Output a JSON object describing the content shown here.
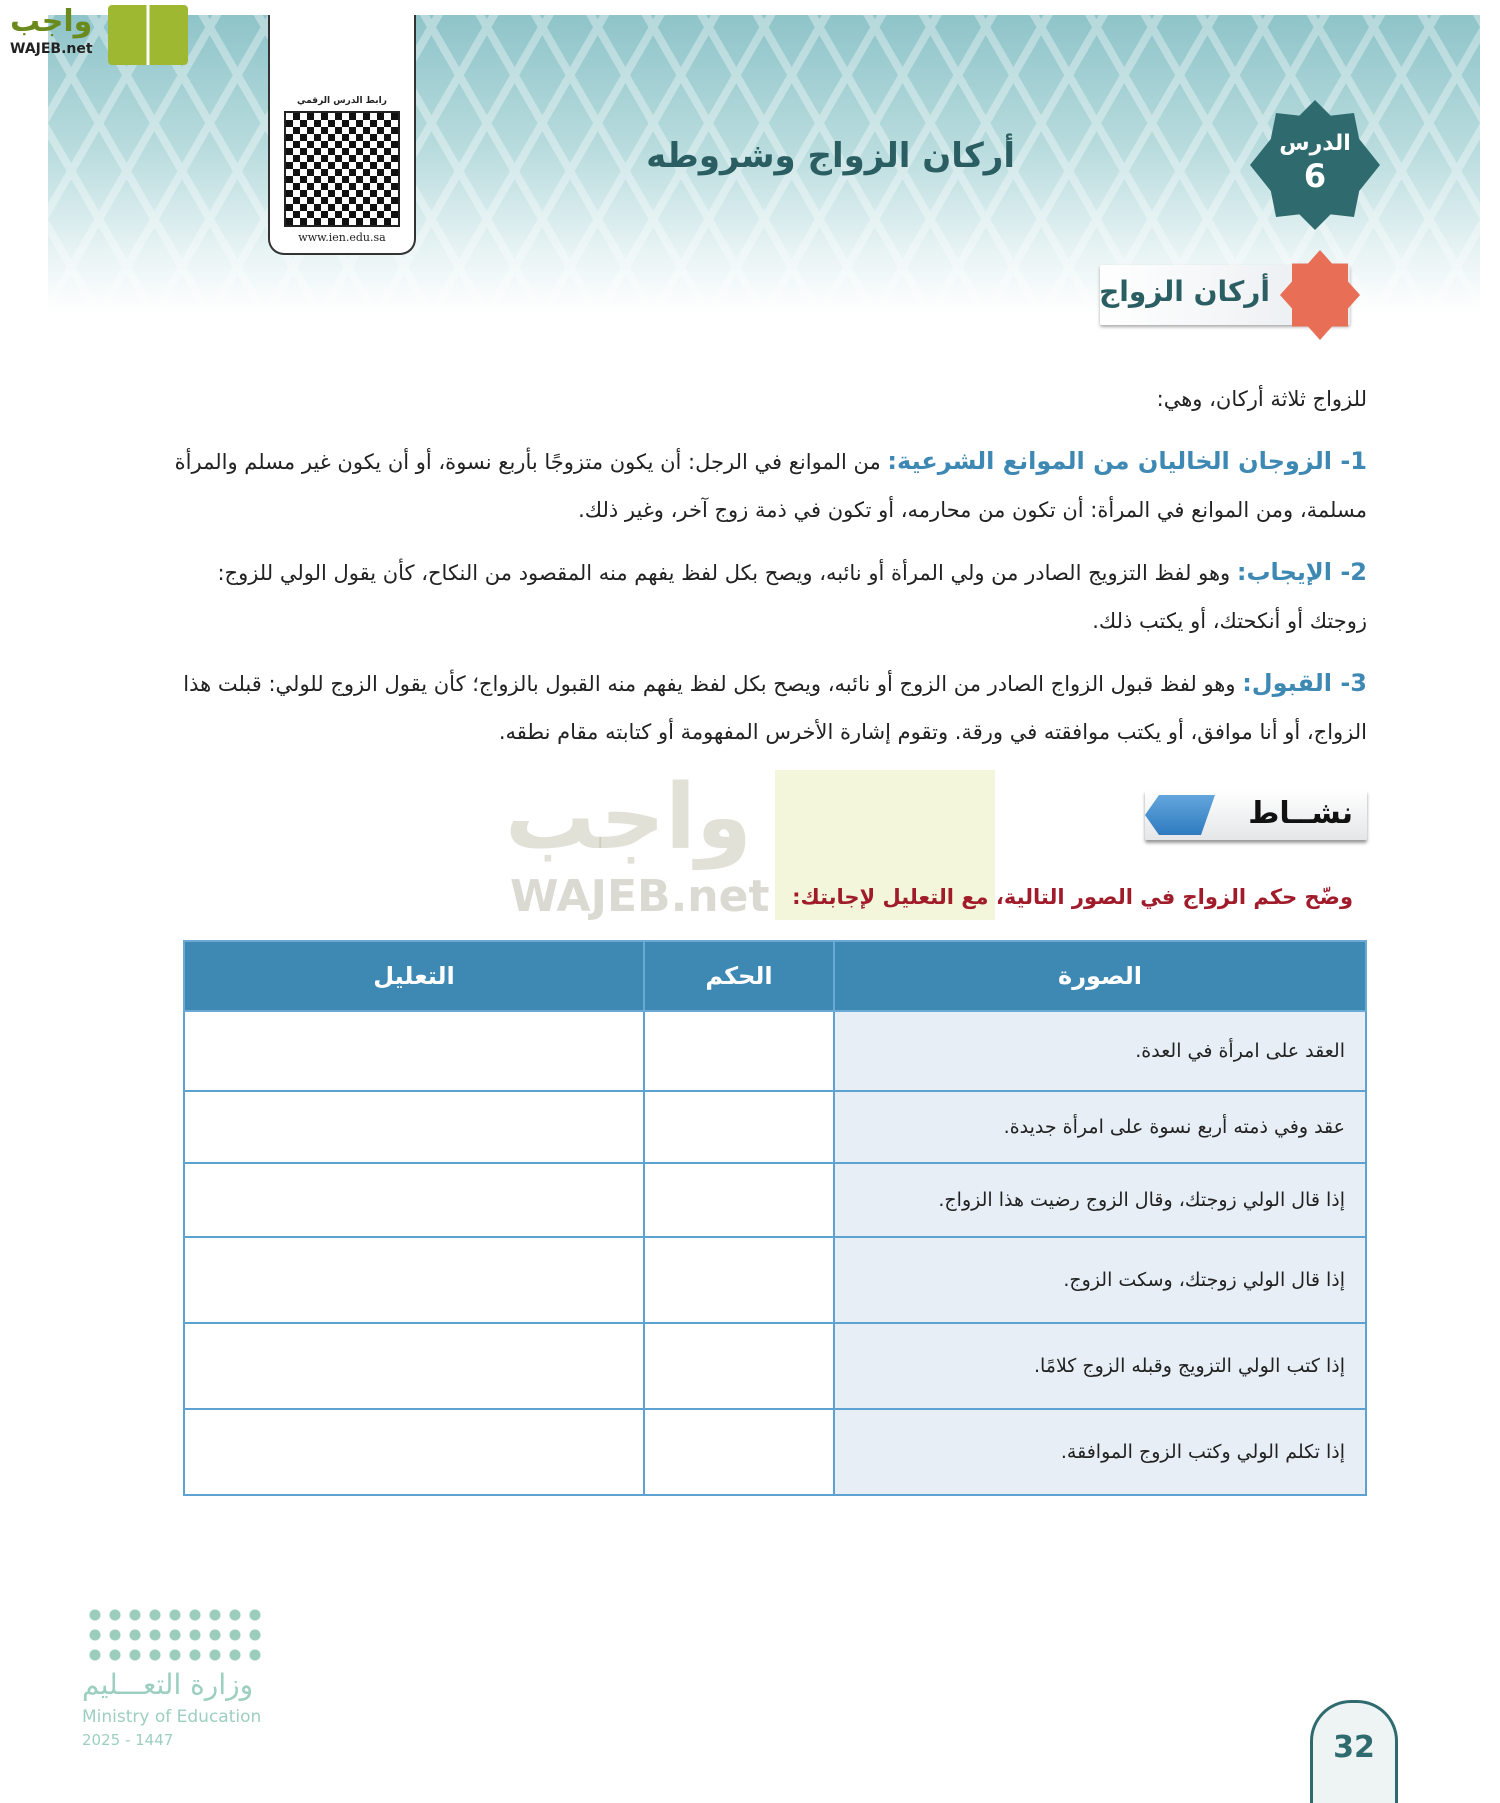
{
  "watermark": {
    "arabic": "واجب",
    "latin": "WAJEB.net"
  },
  "qr": {
    "label": "رابط الدرس الرقمي",
    "url": "www.ien.edu.sa"
  },
  "lesson": {
    "label": "الدرس",
    "number": "6",
    "title": "أركان الزواج وشروطه"
  },
  "section": {
    "title": "أركان الزواج"
  },
  "intro": "للزواج ثلاثة أركان، وهي:",
  "items": [
    {
      "heading": "1- الزوجان الخاليان من الموانع الشرعية:",
      "text": "من الموانع في الرجل: أن يكون متزوجًا بأربع نسوة، أو أن يكون غير مسلم والمرأة مسلمة، ومن الموانع في المرأة: أن تكون من محارمه، أو تكون في ذمة زوج آخر، وغير ذلك."
    },
    {
      "heading": "2- الإيجاب:",
      "text": "وهو لفظ التزويج الصادر من ولي المرأة أو نائبه، ويصح بكل لفظ يفهم منه المقصود من النكاح، كأن يقول الولي للزوج: زوجتك أو أنكحتك، أو يكتب ذلك."
    },
    {
      "heading": "3- القبول:",
      "text": "وهو لفظ قبول الزواج الصادر من الزوج أو نائبه، ويصح بكل لفظ يفهم منه القبول بالزواج؛ كأن يقول الزوج للولي: قبلت هذا الزواج، أو أنا موافق، أو يكتب موافقته في ورقة. وتقوم إشارة الأخرس المفهومة أو كتابته مقام نطقه."
    }
  ],
  "activity": {
    "label": "نشــاط",
    "instruction": "وضّح حكم الزواج في الصور التالية، مع التعليل لإجابتك:",
    "columns": [
      "الصورة",
      "الحكم",
      "التعليل"
    ],
    "rows": [
      "العقد على امرأة في العدة.",
      "عقد وفي ذمته أربع نسوة على امرأة جديدة.",
      "إذا قال الولي زوجتك، وقال الزوج رضيت هذا الزواج.",
      "إذا قال الولي زوجتك، وسكت الزوج.",
      "إذا كتب الولي التزويج وقبله الزوج كلامًا.",
      "إذا تكلم الولي وكتب الزوج الموافقة."
    ]
  },
  "footer": {
    "ministry_ar": "وزارة التعـــليم",
    "ministry_en": "Ministry of Education",
    "year": "2025 - 1447",
    "page": "32"
  },
  "colors": {
    "accent": "#3e88b4",
    "lesson": "#2f6b6e",
    "instruction": "#a01c2a"
  }
}
